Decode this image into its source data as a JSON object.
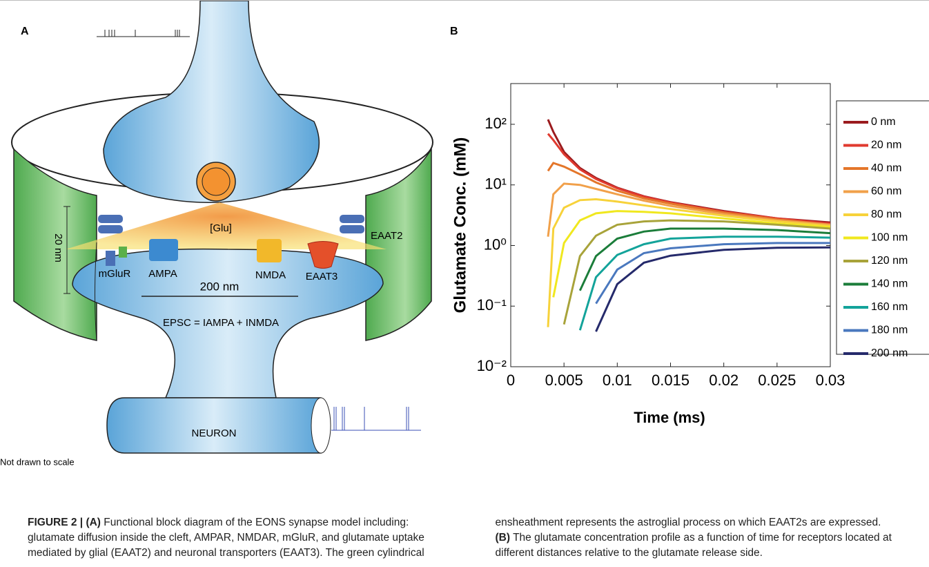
{
  "panel_a": {
    "label": "A",
    "glu": "[Glu]",
    "cleft_height": "20 nm",
    "eaat2": "EAAT2",
    "mglur": "mGluR",
    "ampa": "AMPA",
    "nmda": "NMDA",
    "eaat3": "EAAT3",
    "cleft_width": "200 nm",
    "epsc": "EPSC = IAMPA + INMDA",
    "neuron": "NEURON",
    "note": "Not drawn to scale"
  },
  "chart_data": {
    "type": "line",
    "panel_label": "B",
    "xlabel": "Time (ms)",
    "ylabel": "Glutamate Conc. (mM)",
    "log_y": true,
    "x": [
      0.0035,
      0.004,
      0.005,
      0.0065,
      0.008,
      0.01,
      0.0125,
      0.015,
      0.02,
      0.025,
      0.03
    ],
    "xlim": [
      0,
      0.03
    ],
    "xticks": [
      0,
      0.005,
      0.01,
      0.015,
      0.02,
      0.025,
      0.03
    ],
    "ylim": [
      0.01,
      470
    ],
    "yticks": [
      {
        "value": 0.01,
        "label": "10⁻²"
      },
      {
        "value": 0.1,
        "label": "10⁻¹"
      },
      {
        "value": 1,
        "label": "10⁰"
      },
      {
        "value": 10,
        "label": "10¹"
      },
      {
        "value": 100,
        "label": "10²"
      }
    ],
    "legend": "right",
    "series": [
      {
        "name": "0 nm",
        "color": "#9b1b1e",
        "values": [
          120,
          75,
          35,
          19,
          13,
          9,
          6.5,
          5.2,
          3.7,
          2.8,
          2.4
        ]
      },
      {
        "name": "20 nm",
        "color": "#e03a2f",
        "values": [
          70,
          55,
          32,
          18,
          12.5,
          8.8,
          6.4,
          5.1,
          3.6,
          2.8,
          2.3
        ]
      },
      {
        "name": "40 nm",
        "color": "#e4762a",
        "values": [
          17,
          23,
          20,
          15,
          11,
          8,
          6,
          4.9,
          3.5,
          2.7,
          2.2
        ]
      },
      {
        "name": "60 nm",
        "color": "#f1a04a",
        "values": [
          1.4,
          7,
          10.5,
          10,
          8.6,
          7,
          5.5,
          4.5,
          3.3,
          2.6,
          2.2
        ]
      },
      {
        "name": "80 nm",
        "color": "#f7d23a",
        "values": [
          0.045,
          1.9,
          4.2,
          5.6,
          5.8,
          5.3,
          4.6,
          4,
          3.1,
          2.5,
          2.1
        ]
      },
      {
        "name": "100 nm",
        "color": "#f0e81f",
        "values": [
          null,
          0.14,
          1.1,
          2.6,
          3.4,
          3.7,
          3.6,
          3.4,
          2.8,
          2.3,
          2.0
        ]
      },
      {
        "name": "120 nm",
        "color": "#a8a33a",
        "values": [
          null,
          null,
          0.05,
          0.67,
          1.45,
          2.2,
          2.5,
          2.6,
          2.5,
          2.2,
          1.9
        ]
      },
      {
        "name": "140 nm",
        "color": "#1b7d3a",
        "values": [
          null,
          null,
          null,
          0.18,
          0.67,
          1.3,
          1.7,
          1.9,
          1.9,
          1.8,
          1.6
        ]
      },
      {
        "name": "160 nm",
        "color": "#13a39a",
        "values": [
          null,
          null,
          null,
          0.04,
          0.3,
          0.7,
          1.05,
          1.3,
          1.4,
          1.4,
          1.35
        ]
      },
      {
        "name": "180 nm",
        "color": "#4a78be",
        "values": [
          null,
          null,
          null,
          null,
          0.11,
          0.4,
          0.75,
          0.9,
          1.05,
          1.1,
          1.1
        ]
      },
      {
        "name": "200 nm",
        "color": "#252a6b",
        "values": [
          null,
          null,
          null,
          null,
          0.038,
          0.23,
          0.52,
          0.68,
          0.85,
          0.92,
          0.93
        ]
      }
    ]
  },
  "caption": {
    "figure_label": "FIGURE 2 |",
    "a_label": "(A)",
    "a_text": "Functional block diagram of the EONS synapse model including: glutamate diffusion inside the cleft, AMPAR, NMDAR, mGluR, and glutamate uptake mediated by glial (EAAT2) and neuronal transporters (EAAT3). The green cylindrical ensheathment represents the astroglial process on which EAAT2s are expressed.",
    "b_label": "(B)",
    "b_text": "The glutamate concentration profile as a function of time for receptors located at different distances relative to the glutamate release side."
  }
}
